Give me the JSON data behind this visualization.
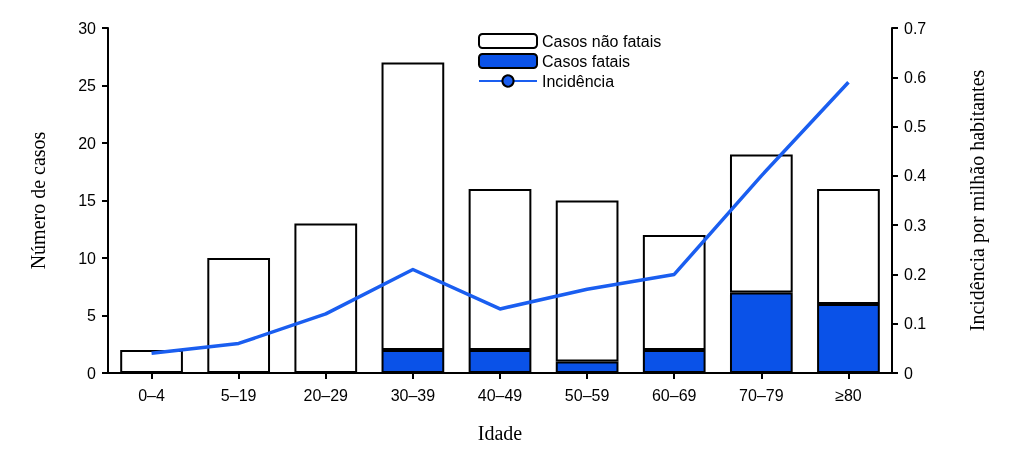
{
  "chart_data": {
    "type": "bar",
    "stacked": true,
    "xlabel": "Idade",
    "ylabel": "Número de casos",
    "y2label": "Incidência por milhão habitantes",
    "categories": [
      "0–4",
      "5–19",
      "20–29",
      "30–39",
      "40–49",
      "50–59",
      "60–69",
      "70–79",
      "≥80"
    ],
    "series": [
      {
        "name": "Casos fatais",
        "color": "#0a52e8",
        "values": [
          0,
          0,
          0,
          2,
          2,
          1,
          2,
          7,
          6
        ]
      },
      {
        "name": "Casos não fatais",
        "color": "#ffffff",
        "values": [
          2,
          10,
          13,
          25,
          14,
          14,
          10,
          12,
          10
        ]
      },
      {
        "name": "Incidência",
        "type": "line",
        "axis": "y2",
        "color": "#1a5ef0",
        "values": [
          0.04,
          0.06,
          0.12,
          0.21,
          0.13,
          0.17,
          0.2,
          0.4,
          0.59
        ]
      }
    ],
    "ylim": [
      0,
      30
    ],
    "yticks": [
      0,
      5,
      10,
      15,
      20,
      25,
      30
    ],
    "y2lim": [
      0,
      0.7
    ],
    "y2ticks": [
      0,
      0.1,
      0.2,
      0.3,
      0.4,
      0.5,
      0.6,
      0.7
    ],
    "legend": "top",
    "grid": false,
    "marker": "none",
    "line_style": "solid"
  }
}
